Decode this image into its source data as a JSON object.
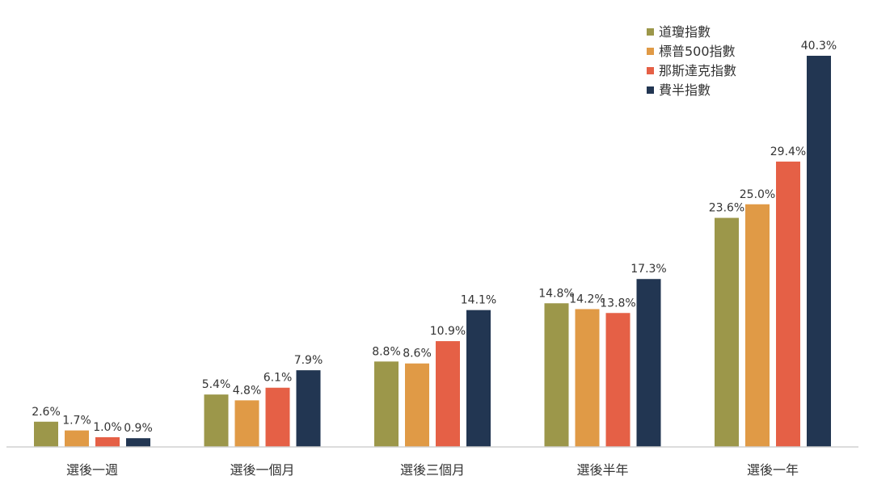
{
  "chart_data": {
    "type": "bar",
    "title": "",
    "xlabel": "",
    "ylabel": "",
    "ylim": [
      0,
      40.3
    ],
    "grid": false,
    "legend_position": "top-right",
    "value_suffix": "%",
    "categories": [
      "選後一週",
      "選後一個月",
      "選後三個月",
      "選後半年",
      "選後一年"
    ],
    "series": [
      {
        "name": "道瓊指數",
        "color": "#9c974a",
        "values": [
          2.6,
          5.4,
          8.8,
          14.8,
          23.6
        ]
      },
      {
        "name": "標普500指數",
        "color": "#e09a46",
        "values": [
          1.7,
          4.8,
          8.6,
          14.2,
          25.0
        ]
      },
      {
        "name": "那斯達克指數",
        "color": "#e56046",
        "values": [
          1.0,
          6.1,
          10.9,
          13.8,
          29.4
        ]
      },
      {
        "name": "費半指數",
        "color": "#223652",
        "values": [
          0.9,
          7.9,
          14.1,
          17.3,
          40.3
        ]
      }
    ]
  }
}
